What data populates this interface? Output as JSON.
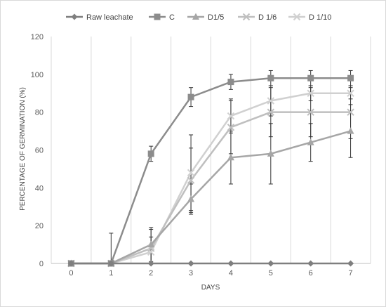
{
  "chart_data": {
    "type": "line",
    "title": "",
    "xlabel": "DAYS",
    "ylabel": "PERCENTAGE OF GERMINATION (%)",
    "x": [
      0,
      1,
      2,
      3,
      4,
      5,
      6,
      7
    ],
    "xlim": [
      0,
      7
    ],
    "ylim": [
      0,
      120
    ],
    "yticks": [
      0,
      20,
      40,
      60,
      80,
      100,
      120
    ],
    "xticks": [
      0,
      1,
      2,
      3,
      4,
      5,
      6,
      7
    ],
    "grid": "vertical",
    "legend_position": "top",
    "series": [
      {
        "name": "Raw  leachate",
        "marker": "diamond",
        "color": "#7f7f7f",
        "values": [
          0,
          0,
          0,
          0,
          0,
          0,
          0,
          0
        ],
        "errors": [
          0,
          0,
          0,
          0,
          0,
          0,
          0,
          0
        ]
      },
      {
        "name": "C",
        "marker": "square",
        "color": "#8c8c8c",
        "values": [
          0,
          0,
          58,
          88,
          96,
          98,
          98,
          98
        ],
        "errors": [
          0,
          0,
          4,
          5,
          4,
          4,
          4,
          4
        ]
      },
      {
        "name": "D1/5",
        "marker": "triangle",
        "color": "#a6a6a6",
        "values": [
          0,
          0,
          10,
          34,
          56,
          58,
          64,
          70
        ],
        "errors": [
          0,
          16,
          9,
          8,
          14,
          16,
          10,
          14
        ]
      },
      {
        "name": "D 1/6",
        "marker": "x",
        "color": "#bfbfbf",
        "values": [
          0,
          0,
          8,
          44,
          72,
          80,
          80,
          80
        ],
        "errors": [
          0,
          0,
          10,
          17,
          14,
          13,
          13,
          14
        ]
      },
      {
        "name": "D 1/10",
        "marker": "x",
        "color": "#d0d0d0",
        "values": [
          0,
          0,
          6,
          48,
          78,
          86,
          90,
          90
        ],
        "errors": [
          0,
          0,
          8,
          20,
          9,
          8,
          4,
          3
        ]
      }
    ]
  }
}
